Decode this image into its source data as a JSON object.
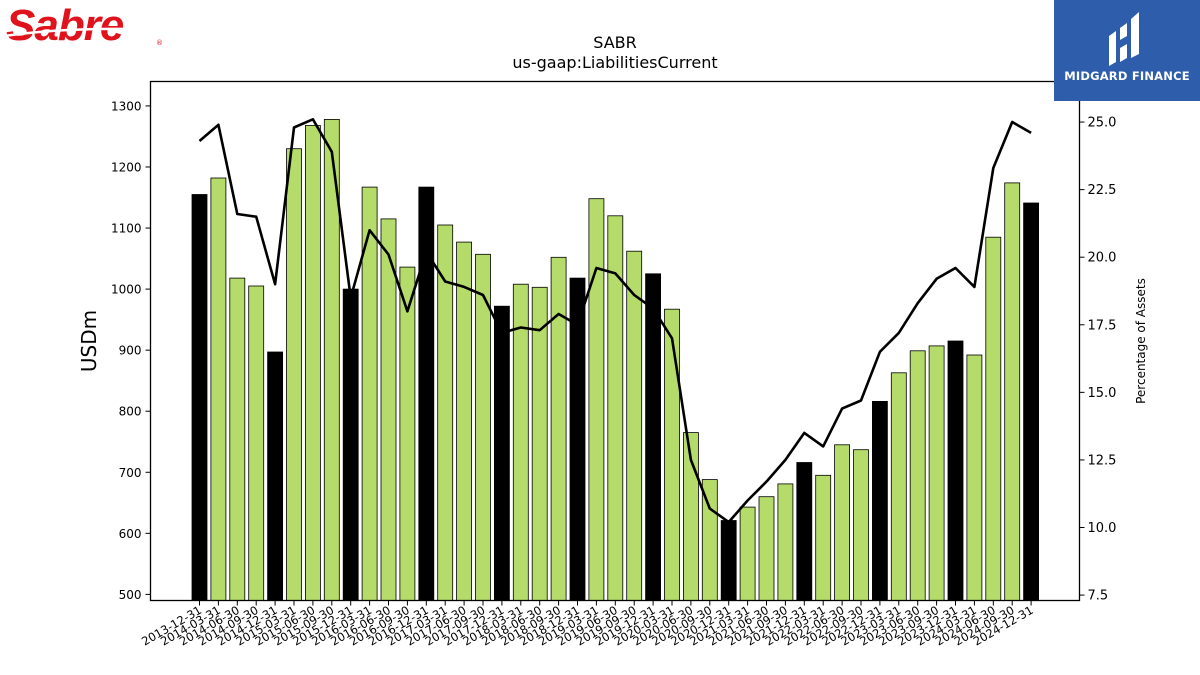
{
  "logos": {
    "sabre_text": "Sabre",
    "sabre_color": "#e0121b",
    "midgard_text": "MIDGARD FINANCE",
    "midgard_bg": "#2d5dab"
  },
  "chart_data": {
    "type": "bar",
    "title": "SABR",
    "subtitle": "us-gaap:LiabilitiesCurrent",
    "ylabel": "USDm",
    "y2label": "Percentage of Assets",
    "ylim": [
      490,
      1340
    ],
    "y2lim": [
      7.3,
      26.5
    ],
    "yticks": [
      500,
      600,
      700,
      800,
      900,
      1000,
      1100,
      1200,
      1300
    ],
    "y2ticks": [
      7.5,
      10.0,
      12.5,
      15.0,
      17.5,
      20.0,
      22.5,
      25.0
    ],
    "colors": {
      "bar_q4": "#000000",
      "bar_other": "#b5dc6a",
      "line": "#000000"
    },
    "categories": [
      "2013-12-31",
      "2014-03-31",
      "2014-06-30",
      "2014-09-30",
      "2014-12-31",
      "2015-03-31",
      "2015-06-30",
      "2015-09-30",
      "2015-12-31",
      "2016-03-31",
      "2016-06-30",
      "2016-09-30",
      "2016-12-31",
      "2017-03-31",
      "2017-06-30",
      "2017-09-30",
      "2017-12-31",
      "2018-03-31",
      "2018-06-30",
      "2018-09-30",
      "2018-12-31",
      "2019-03-31",
      "2019-06-30",
      "2019-09-30",
      "2019-12-31",
      "2020-03-31",
      "2020-06-30",
      "2020-09-30",
      "2020-12-31",
      "2021-03-31",
      "2021-06-30",
      "2021-09-30",
      "2021-12-31",
      "2022-03-31",
      "2022-06-30",
      "2022-09-30",
      "2022-12-31",
      "2023-03-31",
      "2023-06-30",
      "2023-09-30",
      "2023-12-31",
      "2024-03-31",
      "2024-06-30",
      "2024-09-30",
      "2024-12-31"
    ],
    "series": [
      {
        "values": [
          1155,
          1182,
          1018,
          1005,
          897,
          1230,
          1268,
          1278,
          1000,
          1167,
          1115,
          1036,
          1167,
          1105,
          1077,
          1057,
          972,
          1008,
          1003,
          1052,
          1018,
          1148,
          1120,
          1062,
          1025,
          967,
          765,
          688,
          621,
          643,
          660,
          681,
          716,
          695,
          745,
          737,
          816,
          863,
          899,
          907,
          915,
          892,
          1085,
          1174,
          1141
        ]
      },
      {
        "values": [
          24.3,
          24.9,
          21.6,
          21.5,
          19.0,
          24.8,
          25.1,
          23.9,
          18.5,
          21.0,
          20.1,
          18.0,
          20.2,
          19.1,
          18.9,
          18.6,
          17.2,
          17.4,
          17.3,
          17.9,
          17.5,
          19.6,
          19.4,
          18.6,
          18.1,
          17.0,
          12.5,
          10.7,
          10.2,
          11.0,
          11.7,
          12.5,
          13.5,
          13.0,
          14.4,
          14.7,
          16.5,
          17.2,
          18.3,
          19.2,
          19.6,
          18.9,
          23.3,
          25.0,
          24.6
        ]
      }
    ]
  }
}
